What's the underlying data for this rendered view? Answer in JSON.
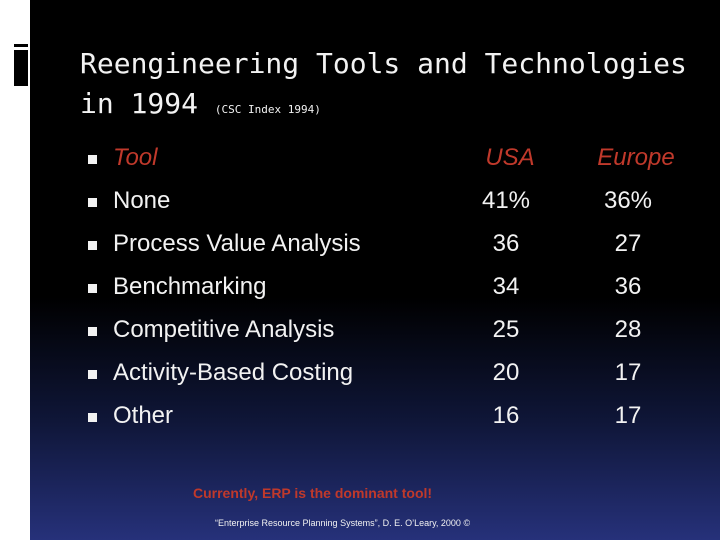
{
  "slide": {
    "title_line1": "Reengineering Tools and Technologies",
    "title_line2": "in 1994",
    "title_sub": "(CSC Index 1994)",
    "header": {
      "tool": "Tool",
      "usa": "USA",
      "europe": "Europe"
    },
    "rows": [
      {
        "tool": "None",
        "usa": "41%",
        "europe": "36%"
      },
      {
        "tool": "Process Value Analysis",
        "usa": "36",
        "europe": "27"
      },
      {
        "tool": "Benchmarking",
        "usa": "34",
        "europe": "36"
      },
      {
        "tool": "Competitive Analysis",
        "usa": "25",
        "europe": "28"
      },
      {
        "tool": "Activity-Based Costing",
        "usa": "20",
        "europe": "17"
      },
      {
        "tool": "Other",
        "usa": "16",
        "europe": "17"
      }
    ],
    "note": "Currently, ERP is the dominant tool!",
    "citation": "“Enterprise Resource Planning Systems”, D. E. O’Leary, 2000 ©"
  },
  "colors": {
    "background": "#000000",
    "text": "#f2f2f2",
    "accent": "#c0392b",
    "gradient_bottom": "#26317a"
  }
}
